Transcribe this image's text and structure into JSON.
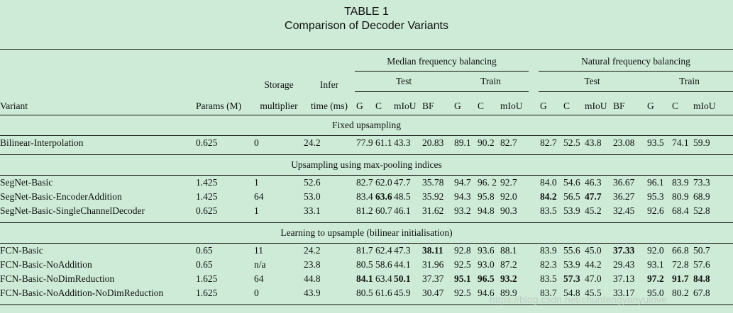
{
  "caption": {
    "label": "TABLE 1",
    "title": "Comparison of Decoder Variants"
  },
  "header": {
    "variant": "Variant",
    "params": "Params (M)",
    "storage_1": "Storage",
    "storage_2": "multiplier",
    "infer_1": "Infer",
    "infer_2": "time (ms)",
    "median": "Median frequency balancing",
    "natural": "Natural frequency balancing",
    "test": "Test",
    "train": "Train",
    "test_cols": [
      "G",
      "C",
      "mIoU",
      "BF"
    ],
    "train_cols": [
      "G",
      "C",
      "mIoU"
    ]
  },
  "sections": [
    {
      "title": "Fixed upsampling",
      "rows": [
        {
          "variant": "Bilinear-Interpolation",
          "params": "0.625",
          "storage": "0",
          "infer": "24.2",
          "cells": [
            "77.9",
            "61.1",
            "43.3",
            "20.83",
            "89.1",
            "90.2",
            "82.7",
            "82.7",
            "52.5",
            "43.8",
            "23.08",
            "93.5",
            "74.1",
            "59.9"
          ],
          "bold": []
        }
      ]
    },
    {
      "title": "Upsampling using max-pooling indices",
      "rows": [
        {
          "variant": "SegNet-Basic",
          "params": "1.425",
          "storage": "1",
          "infer": "52.6",
          "cells": [
            "82.7",
            "62.0",
            "47.7",
            "35.78",
            "94.7",
            "96. 2",
            "92.7",
            "84.0",
            "54.6",
            "46.3",
            "36.67",
            "96.1",
            "83.9",
            "73.3"
          ],
          "bold": []
        },
        {
          "variant": "SegNet-Basic-EncoderAddition",
          "params": "1.425",
          "storage": "64",
          "infer": "53.0",
          "cells": [
            "83.4",
            "63.6",
            "48.5",
            "35.92",
            "94.3",
            "95.8",
            "92.0",
            "84.2",
            "56.5",
            "47.7",
            "36.27",
            "95.3",
            "80.9",
            "68.9"
          ],
          "bold": [
            1,
            7,
            9
          ]
        },
        {
          "variant": "SegNet-Basic-SingleChannelDecoder",
          "params": "0.625",
          "storage": "1",
          "infer": "33.1",
          "cells": [
            "81.2",
            "60.7",
            "46.1",
            "31.62",
            "93.2",
            "94.8",
            "90.3",
            "83.5",
            "53.9",
            "45.2",
            "32.45",
            "92.6",
            "68.4",
            "52.8"
          ],
          "bold": []
        }
      ]
    },
    {
      "title": "Learning to upsample (bilinear initialisation)",
      "rows": [
        {
          "variant": "FCN-Basic",
          "params": "0.65",
          "storage": "11",
          "infer": "24.2",
          "cells": [
            "81.7",
            "62.4",
            "47.3",
            "38.11",
            "92.8",
            "93.6",
            "88.1",
            "83.9",
            "55.6",
            "45.0",
            "37.33",
            "92.0",
            "66.8",
            "50.7"
          ],
          "bold": [
            3,
            10
          ]
        },
        {
          "variant": "FCN-Basic-NoAddition",
          "params": "0.65",
          "storage": "n/a",
          "infer": "23.8",
          "cells": [
            "80.5",
            "58.6",
            "44.1",
            "31.96",
            "92.5",
            "93.0",
            "87.2",
            "82.3",
            "53.9",
            "44.2",
            "29.43",
            "93.1",
            "72.8",
            "57.6"
          ],
          "bold": []
        },
        {
          "variant": "FCN-Basic-NoDimReduction",
          "params": "1.625",
          "storage": "64",
          "infer": "44.8",
          "cells": [
            "84.1",
            "63.4",
            "50.1",
            "37.37",
            "95.1",
            "96.5",
            "93.2",
            "83.5",
            "57.3",
            "47.0",
            "37.13",
            "97.2",
            "91.7",
            "84.8"
          ],
          "bold": [
            0,
            2,
            4,
            5,
            6,
            8,
            11,
            12,
            13
          ]
        },
        {
          "variant": "FCN-Basic-NoAddition-NoDimReduction",
          "params": "1.625",
          "storage": "0",
          "infer": "43.9",
          "cells": [
            "80.5",
            "61.6",
            "45.9",
            "30.47",
            "92.5",
            "94.6",
            "89.9",
            "83.7",
            "54.8",
            "45.5",
            "33.17",
            "95.0",
            "80.2",
            "67.8"
          ],
          "bold": []
        }
      ]
    }
  ],
  "watermark": "https://blog.csdn.net/chunfengyanyulove"
}
